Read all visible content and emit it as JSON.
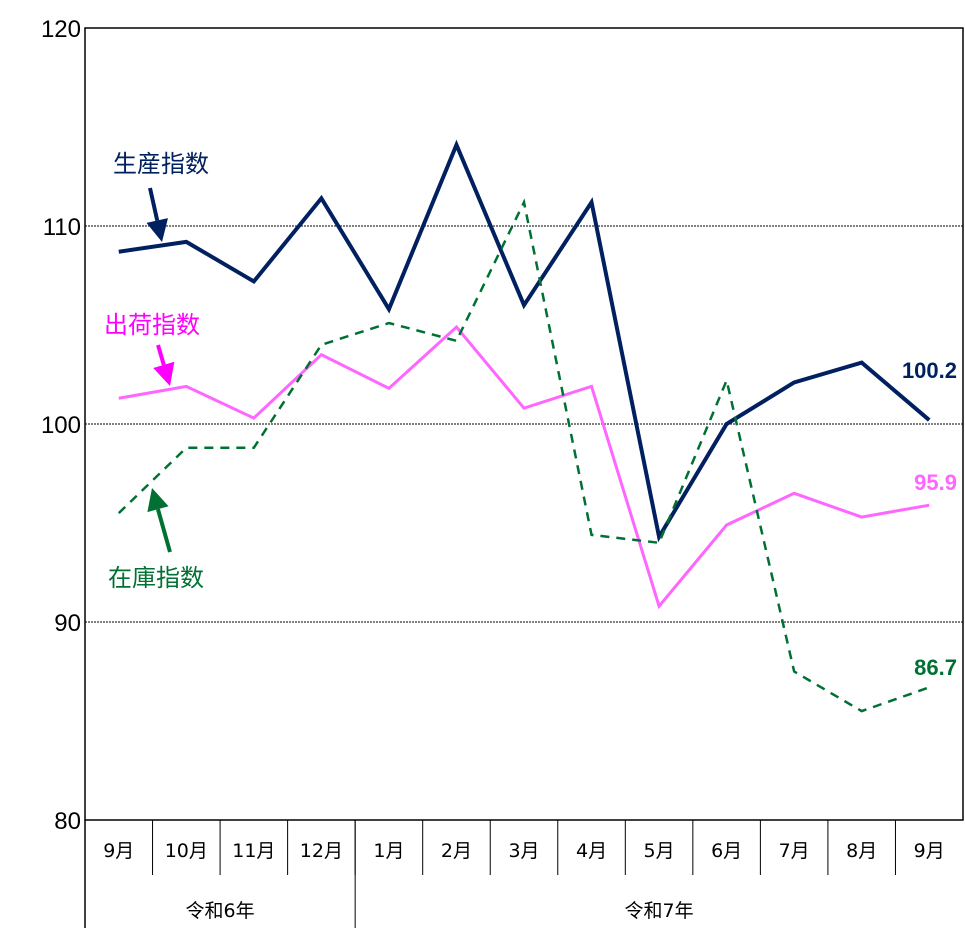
{
  "chart_data": {
    "type": "line",
    "title": "",
    "xlabel": "",
    "ylabel": "",
    "ylim": [
      80,
      120
    ],
    "yticks": [
      80,
      90,
      100,
      110,
      120
    ],
    "grid": "horizontal dotted",
    "categories": [
      "9月",
      "10月",
      "11月",
      "12月",
      "1月",
      "2月",
      "3月",
      "4月",
      "5月",
      "6月",
      "7月",
      "8月",
      "9月"
    ],
    "year_groups": [
      {
        "label": "令和6年",
        "count": 4
      },
      {
        "label": "令和7年",
        "count": 9
      }
    ],
    "series": [
      {
        "name": "生産指数",
        "color": "#002060",
        "style": "solid",
        "values": [
          108.7,
          109.2,
          107.2,
          111.4,
          105.8,
          114.1,
          106.0,
          111.2,
          94.3,
          100.0,
          102.1,
          103.1,
          100.2
        ],
        "end_label": "100.2"
      },
      {
        "name": "出荷指数",
        "color": "#FF66FF",
        "style": "solid",
        "values": [
          101.3,
          101.9,
          100.3,
          103.5,
          101.8,
          104.9,
          100.8,
          101.9,
          90.8,
          94.9,
          96.5,
          95.3,
          95.9
        ],
        "end_label": "95.9"
      },
      {
        "name": "在庫指数",
        "color": "#007033",
        "style": "dashed",
        "values": [
          95.5,
          98.8,
          98.8,
          104.0,
          105.1,
          104.2,
          111.2,
          94.4,
          94.0,
          102.2,
          87.5,
          85.5,
          86.7
        ],
        "end_label": "86.7"
      }
    ],
    "label_colors": {
      "生産指数": "#002060",
      "出荷指数": "#FF00FF",
      "在庫指数": "#007033"
    }
  }
}
